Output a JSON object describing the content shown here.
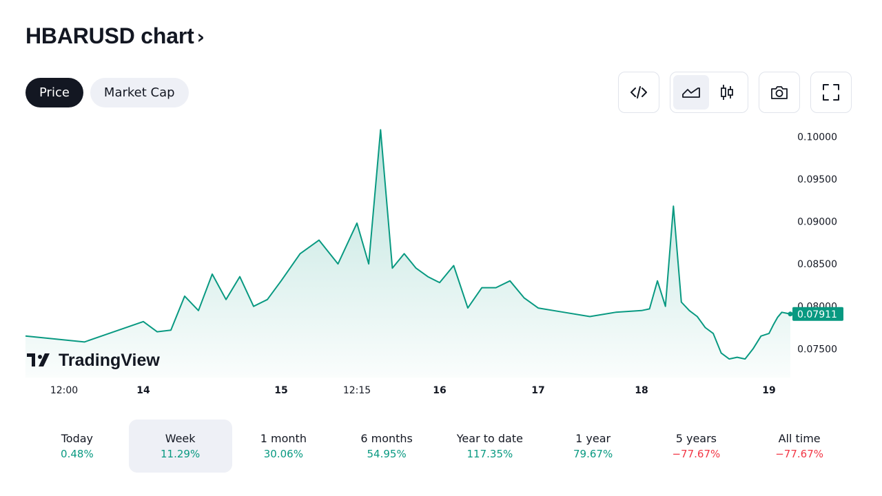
{
  "header": {
    "title": "HBARUSD chart",
    "chevron": "›"
  },
  "tabs": [
    {
      "label": "Price",
      "active": true
    },
    {
      "label": "Market Cap",
      "active": false
    }
  ],
  "toolbar": {
    "buttons": [
      "embed-code-icon",
      "area-chart-icon",
      "candles-icon",
      "camera-icon",
      "fullscreen-icon"
    ],
    "selected": "area-chart-icon"
  },
  "watermark": {
    "text": "TradingView"
  },
  "colors": {
    "line": "#089981",
    "fill": "#089981",
    "positive": "#089981",
    "negative": "#f23645",
    "accent_bg": "#eef0f6"
  },
  "chart_data": {
    "type": "area",
    "title": "",
    "xlabel": "",
    "ylabel": "",
    "x_tick_labels": [
      "12:00",
      "14",
      "15",
      "12:15",
      "16",
      "17",
      "18",
      "19"
    ],
    "y_tick_labels": [
      "0.10000",
      "0.09500",
      "0.09000",
      "0.08500",
      "0.08000",
      "0.07500"
    ],
    "ylim": [
      0.0721,
      0.1028
    ],
    "last_price": "0.07911",
    "grid": false,
    "series": [
      {
        "points": [
          [
            "12:00",
            0.0765
          ],
          [
            "12:00",
            0.0758
          ],
          [
            "14",
            0.0782
          ],
          [
            "14",
            0.077
          ],
          [
            "14",
            0.0772
          ],
          [
            "14",
            0.0812
          ],
          [
            "14",
            0.0795
          ],
          [
            "14",
            0.0838
          ],
          [
            "14",
            0.0808
          ],
          [
            "14",
            0.0835
          ],
          [
            "14",
            0.08
          ],
          [
            "14",
            0.0808
          ],
          [
            "15",
            0.083
          ],
          [
            "15",
            0.0862
          ],
          [
            "15",
            0.0878
          ],
          [
            "15",
            0.085
          ],
          [
            "12:15",
            0.0898
          ],
          [
            "12:15",
            0.085
          ],
          [
            "12:15",
            0.1008
          ],
          [
            "12:15",
            0.0845
          ],
          [
            "12:15",
            0.0862
          ],
          [
            "12:15",
            0.0845
          ],
          [
            "12:15",
            0.0835
          ],
          [
            "16",
            0.0828
          ],
          [
            "16",
            0.0848
          ],
          [
            "16",
            0.0798
          ],
          [
            "16",
            0.0822
          ],
          [
            "16",
            0.0822
          ],
          [
            "16",
            0.083
          ],
          [
            "16",
            0.081
          ],
          [
            "17",
            0.0798
          ],
          [
            "17",
            0.0793
          ],
          [
            "17",
            0.0788
          ],
          [
            "17",
            0.0793
          ],
          [
            "18",
            0.0795
          ],
          [
            "18",
            0.0797
          ],
          [
            "18",
            0.083
          ],
          [
            "18",
            0.08
          ],
          [
            "18",
            0.0918
          ],
          [
            "18",
            0.0805
          ],
          [
            "18",
            0.0795
          ],
          [
            "18",
            0.0788
          ],
          [
            "18",
            0.0775
          ],
          [
            "18",
            0.0768
          ],
          [
            "18",
            0.0745
          ],
          [
            "18",
            0.0738
          ],
          [
            "18",
            0.074
          ],
          [
            "18",
            0.0738
          ],
          [
            "18",
            0.075
          ],
          [
            "18",
            0.0765
          ],
          [
            "19",
            0.0768
          ],
          [
            "19",
            0.0778
          ],
          [
            "19",
            0.0787
          ],
          [
            "19",
            0.0793
          ],
          [
            "19",
            0.0791
          ]
        ]
      }
    ]
  },
  "periods": [
    {
      "label": "Today",
      "value": "0.48%",
      "sign": "pos",
      "selected": false
    },
    {
      "label": "Week",
      "value": "11.29%",
      "sign": "pos",
      "selected": true
    },
    {
      "label": "1 month",
      "value": "30.06%",
      "sign": "pos",
      "selected": false
    },
    {
      "label": "6 months",
      "value": "54.95%",
      "sign": "pos",
      "selected": false
    },
    {
      "label": "Year to date",
      "value": "117.35%",
      "sign": "pos",
      "selected": false
    },
    {
      "label": "1 year",
      "value": "79.67%",
      "sign": "pos",
      "selected": false
    },
    {
      "label": "5 years",
      "value": "−77.67%",
      "sign": "neg",
      "selected": false
    },
    {
      "label": "All time",
      "value": "−77.67%",
      "sign": "neg",
      "selected": false
    }
  ]
}
